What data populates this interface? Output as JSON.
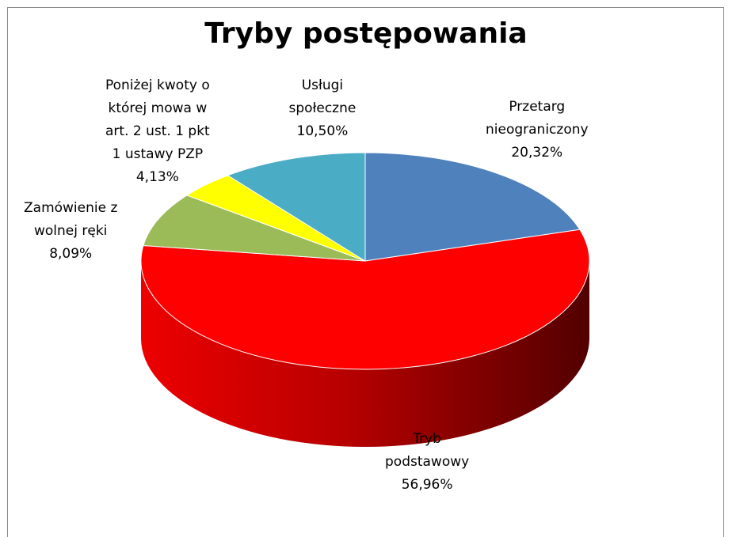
{
  "chart_data": {
    "type": "pie",
    "title": "Tryby postępowania",
    "slices": [
      {
        "label_lines": [
          "Przetarg",
          "nieograniczony"
        ],
        "percent_text": "20,32%",
        "value": 20.32,
        "color": "#4f81bd"
      },
      {
        "label_lines": [
          "Tryb",
          "podstawowy"
        ],
        "percent_text": "56,96%",
        "value": 56.96,
        "color": "#ff0000"
      },
      {
        "label_lines": [
          "Zamówienie z",
          "wolnej ręki"
        ],
        "percent_text": "8,09%",
        "value": 8.09,
        "color": "#9bbb59"
      },
      {
        "label_lines": [
          "Poniżej kwoty o",
          "której mowa w",
          "art. 2 ust. 1 pkt",
          "1 ustawy PZP"
        ],
        "percent_text": "4,13%",
        "value": 4.13,
        "color": "#ffff00"
      },
      {
        "label_lines": [
          "Usługi",
          "społeczne"
        ],
        "percent_text": "10,50%",
        "value": 10.5,
        "color": "#4bacc6"
      }
    ]
  }
}
